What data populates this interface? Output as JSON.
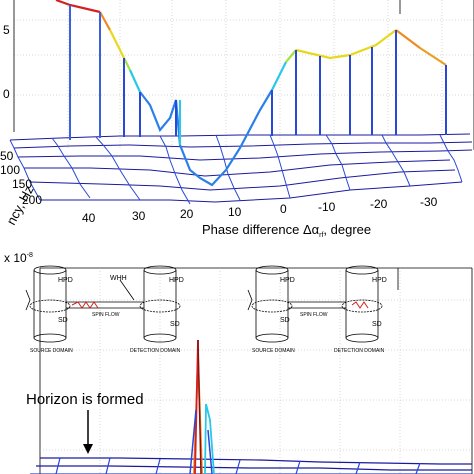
{
  "top_panel": {
    "phase_axis_label": "Phase difference Δα",
    "phase_axis_subscript": "rf",
    "phase_axis_unit": ", degree",
    "phase_ticks": [
      "40",
      "30",
      "20",
      "10",
      "0",
      "-10",
      "-20",
      "-30"
    ],
    "freq_axis_label": "ncy, Hz",
    "freq_ticks": [
      "50",
      "100",
      "150",
      "200"
    ],
    "left_edge_marks": [
      "5",
      "0"
    ]
  },
  "bottom_panel": {
    "scale_label": "x 10",
    "scale_exponent": "-8",
    "annotation": "Horizon is formed",
    "inset_left": {
      "hpd": "HPD",
      "whh": "WHH",
      "sd": "SD",
      "spin_flow": "SPIN FLOW",
      "source": "SOURCE DOMAIN",
      "detection": "DETECTION DOMAIN"
    },
    "inset_right": {
      "hpd": "HPD",
      "sd": "SD",
      "spin_flow": "SPIN FLOW",
      "source": "SOURCE DOMAIN",
      "detection": "DETECTION DOMAIN"
    }
  },
  "colors": {
    "mesh_dark": "#1a1aa0",
    "mesh_blue": "#2a48d8",
    "peak_red": "#d42020",
    "peak_orange": "#f08a20",
    "peak_yellow": "#e8d81c",
    "peak_cyan": "#28c8e8",
    "inset_red": "#d42020"
  }
}
